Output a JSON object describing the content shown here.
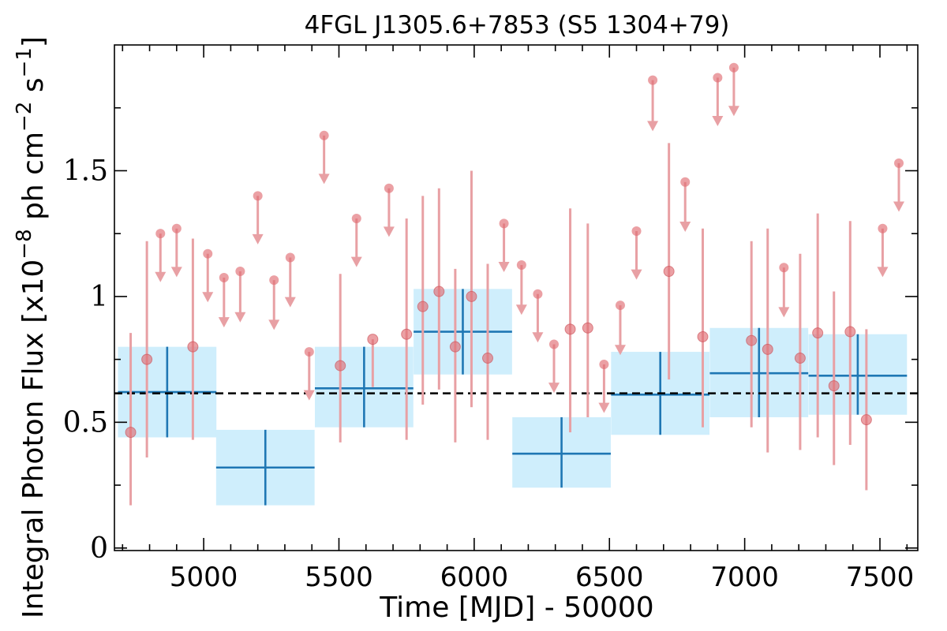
{
  "chart_data": {
    "type": "scatter",
    "title": "4FGL J1305.6+7853 (S5 1304+79)",
    "xlabel": "Time [MJD] - 50000",
    "ylabel_prefix": "Integral Photon Flux [x10",
    "ylabel_exp1": "−8",
    "ylabel_mid": " ph cm",
    "ylabel_exp2": "−2",
    "ylabel_mid2": " s",
    "ylabel_exp3": "−1",
    "ylabel_suffix": "]",
    "xlim": [
      4670,
      7640
    ],
    "ylim": [
      -0.01,
      2.0
    ],
    "xticks": [
      5000,
      5500,
      6000,
      6500,
      7000,
      7500
    ],
    "xtick_labels": [
      "5000",
      "5500",
      "6000",
      "6500",
      "7000",
      "7500"
    ],
    "yticks": [
      0,
      0.5,
      1,
      1.5
    ],
    "ytick_labels": [
      "0",
      "0.5",
      "1",
      "1.5"
    ],
    "mean_flux": 0.615,
    "colors": {
      "points": "#e06d73",
      "errorbars": "#e8a0a4",
      "bins_fill": "#cfeefc",
      "bins_line": "#1f77b4",
      "mean_line": "#000000"
    },
    "series": [
      {
        "kind": "coarse-bins",
        "points": [
          {
            "x": 4865,
            "xerr": 182,
            "y": 0.62,
            "ylo": 0.44,
            "yhi": 0.8
          },
          {
            "x": 5228,
            "xerr": 182,
            "y": 0.32,
            "ylo": 0.17,
            "yhi": 0.47
          },
          {
            "x": 5593,
            "xerr": 182,
            "y": 0.635,
            "ylo": 0.48,
            "yhi": 0.8
          },
          {
            "x": 5958,
            "xerr": 182,
            "y": 0.86,
            "ylo": 0.69,
            "yhi": 1.03
          },
          {
            "x": 6323,
            "xerr": 182,
            "y": 0.375,
            "ylo": 0.24,
            "yhi": 0.52
          },
          {
            "x": 6688,
            "xerr": 182,
            "y": 0.61,
            "ylo": 0.45,
            "yhi": 0.78
          },
          {
            "x": 7053,
            "xerr": 182,
            "y": 0.695,
            "ylo": 0.52,
            "yhi": 0.875
          },
          {
            "x": 7418,
            "xerr": 182,
            "y": 0.685,
            "ylo": 0.53,
            "yhi": 0.85
          }
        ]
      },
      {
        "kind": "fine-detections",
        "points": [
          {
            "x": 4730,
            "y": 0.46,
            "ylo": 0.17,
            "yhi": 0.855
          },
          {
            "x": 4790,
            "y": 0.75,
            "ylo": 0.36,
            "yhi": 1.22
          },
          {
            "x": 4960,
            "y": 0.8,
            "ylo": 0.43,
            "yhi": 1.23
          },
          {
            "x": 5505,
            "y": 0.725,
            "ylo": 0.42,
            "yhi": 1.09
          },
          {
            "x": 5625,
            "y": 0.83,
            "ylo": 0.64,
            "yhi": 0.83
          },
          {
            "x": 5750,
            "y": 0.85,
            "ylo": 0.43,
            "yhi": 1.31
          },
          {
            "x": 5810,
            "y": 0.96,
            "ylo": 0.57,
            "yhi": 1.4
          },
          {
            "x": 5870,
            "y": 1.02,
            "ylo": 0.63,
            "yhi": 1.43
          },
          {
            "x": 5930,
            "y": 0.8,
            "ylo": 0.42,
            "yhi": 1.11
          },
          {
            "x": 5990,
            "y": 1.0,
            "ylo": 0.56,
            "yhi": 1.5
          },
          {
            "x": 6050,
            "y": 0.755,
            "ylo": 0.43,
            "yhi": 1.13
          },
          {
            "x": 6355,
            "y": 0.87,
            "ylo": 0.46,
            "yhi": 1.35
          },
          {
            "x": 6420,
            "y": 0.875,
            "ylo": 0.52,
            "yhi": 1.29
          },
          {
            "x": 6720,
            "y": 1.1,
            "ylo": 0.67,
            "yhi": 1.61
          },
          {
            "x": 6845,
            "y": 0.84,
            "ylo": 0.48,
            "yhi": 1.27
          },
          {
            "x": 7025,
            "y": 0.825,
            "ylo": 0.48,
            "yhi": 1.22
          },
          {
            "x": 7085,
            "y": 0.79,
            "ylo": 0.38,
            "yhi": 1.27
          },
          {
            "x": 7205,
            "y": 0.755,
            "ylo": 0.39,
            "yhi": 1.17
          },
          {
            "x": 7270,
            "y": 0.855,
            "ylo": 0.44,
            "yhi": 1.33
          },
          {
            "x": 7330,
            "y": 0.645,
            "ylo": 0.33,
            "yhi": 1.02
          },
          {
            "x": 7390,
            "y": 0.86,
            "ylo": 0.41,
            "yhi": 1.3
          },
          {
            "x": 7450,
            "y": 0.51,
            "ylo": 0.23,
            "yhi": 0.87
          }
        ]
      },
      {
        "kind": "upper-limits",
        "points": [
          {
            "x": 4840,
            "y": 1.25,
            "arrow_to": 1.06
          },
          {
            "x": 4900,
            "y": 1.27,
            "arrow_to": 1.08
          },
          {
            "x": 5015,
            "y": 1.17,
            "arrow_to": 0.98
          },
          {
            "x": 5075,
            "y": 1.075,
            "arrow_to": 0.88
          },
          {
            "x": 5135,
            "y": 1.1,
            "arrow_to": 0.9
          },
          {
            "x": 5200,
            "y": 1.4,
            "arrow_to": 1.21
          },
          {
            "x": 5260,
            "y": 1.065,
            "arrow_to": 0.87
          },
          {
            "x": 5320,
            "y": 1.155,
            "arrow_to": 0.96
          },
          {
            "x": 5390,
            "y": 0.78,
            "arrow_to": 0.59
          },
          {
            "x": 5445,
            "y": 1.64,
            "arrow_to": 1.45
          },
          {
            "x": 5565,
            "y": 1.31,
            "arrow_to": 1.12
          },
          {
            "x": 5685,
            "y": 1.43,
            "arrow_to": 1.24
          },
          {
            "x": 6110,
            "y": 1.29,
            "arrow_to": 1.1
          },
          {
            "x": 6175,
            "y": 1.125,
            "arrow_to": 0.93
          },
          {
            "x": 6235,
            "y": 1.01,
            "arrow_to": 0.82
          },
          {
            "x": 6295,
            "y": 0.81,
            "arrow_to": 0.62
          },
          {
            "x": 6480,
            "y": 0.73,
            "arrow_to": 0.54
          },
          {
            "x": 6540,
            "y": 0.965,
            "arrow_to": 0.77
          },
          {
            "x": 6600,
            "y": 1.26,
            "arrow_to": 1.07
          },
          {
            "x": 6660,
            "y": 1.86,
            "arrow_to": 1.66
          },
          {
            "x": 6780,
            "y": 1.455,
            "arrow_to": 1.26
          },
          {
            "x": 6900,
            "y": 1.87,
            "arrow_to": 1.68
          },
          {
            "x": 6960,
            "y": 1.91,
            "arrow_to": 1.72
          },
          {
            "x": 7145,
            "y": 1.115,
            "arrow_to": 0.92
          },
          {
            "x": 7510,
            "y": 1.27,
            "arrow_to": 1.08
          },
          {
            "x": 7570,
            "y": 1.53,
            "arrow_to": 1.34
          }
        ]
      }
    ]
  }
}
